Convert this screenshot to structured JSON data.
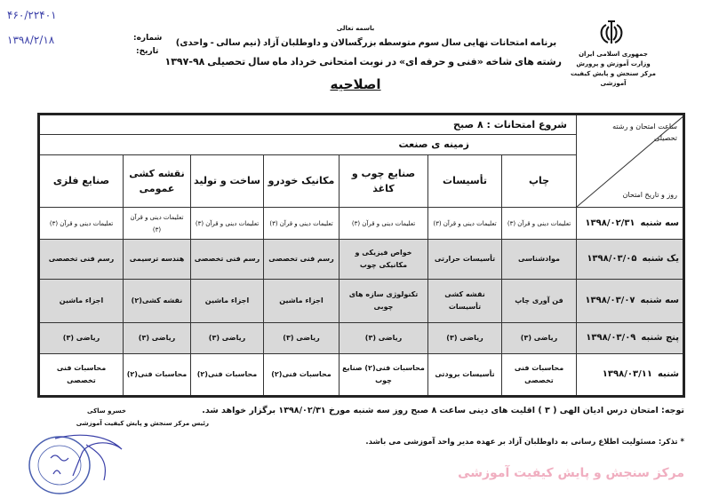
{
  "header": {
    "basmala": "باسمه تعالی",
    "title_line1": "برنامه امتحانات نهایی سال سوم متوسطه بزرگسالان و داوطلبان آزاد (نیم سالی - واحدی)",
    "title_line2": "رشته های شاخه «فنی و حرفه ای» در نوبت امتحانی خرداد ماه سال تحصیلی ۹۸-۱۳۹۷",
    "title_line3": "اصلاحیه",
    "org": [
      "جمهوری اسلامی ایران",
      "وزارت آموزش و پرورش",
      "مرکز سنجش و پایش کیفیت آموزشی"
    ],
    "number_label": "شماره:",
    "number_value": "۴۶۰/۲۲۴۰۱",
    "date_label": "تاریخ:",
    "date_value": "۱۳۹۸/۲/۱۸"
  },
  "table": {
    "start_time": "شروع امتحانات : ۸ صبح",
    "zone": "زمینه ی صنعت",
    "corner_top": "ساعت امتحان و رشته تحصیلی",
    "corner_bottom": "روز و تاریخ امتحان",
    "columns": [
      "چاپ",
      "تأسیسات",
      "صنایع چوب و کاغذ",
      "مکانیک خودرو",
      "ساخت و تولید",
      "نقشه کشی عمومی",
      "صنایع فلزی"
    ],
    "rows": [
      {
        "day": "سه شنبه",
        "date": "۱۳۹۸/۰۲/۳۱",
        "shaded": false,
        "cells": [
          "تعلیمات دینی و قرآن (۳)",
          "تعلیمات دینی و قرآن (۳)",
          "تعلیمات دینی و قرآن (۳)",
          "تعلیمات دینی و قرآن (۳)",
          "تعلیمات دینی و قرآن (۳)",
          "تعلیمات دینی و قرآن (۳)",
          "تعلیمات دینی و قرآن (۳)"
        ]
      },
      {
        "day": "یک شنبه",
        "date": "۱۳۹۸/۰۳/۰۵",
        "shaded": true,
        "cells": [
          "موادشناسی",
          "تأسیسات حرارتی",
          "خواص فیزیکی و مکانیکی چوب",
          "رسم فنی تخصصی",
          "رسم فنی تخصصی",
          "هندسه ترسیمی",
          "رسم فنی تخصصی"
        ]
      },
      {
        "day": "سه شنبه",
        "date": "۱۳۹۸/۰۳/۰۷",
        "shaded": true,
        "cells": [
          "فن آوری چاپ",
          "نقشه کشی تأسیسات",
          "تکنولوژی سازه های چوبی",
          "اجزاء ماشین",
          "اجزاء ماشین",
          "نقشه کشی(۲)",
          "اجزاء ماشین"
        ]
      },
      {
        "day": "پنج شنبه",
        "date": "۱۳۹۸/۰۳/۰۹",
        "shaded": true,
        "cells": [
          "ریاضی (۳)",
          "ریاضی (۳)",
          "ریاضی (۳)",
          "ریاضی (۳)",
          "ریاضی (۳)",
          "ریاضی (۳)",
          "ریاضی (۳)"
        ]
      },
      {
        "day": "شنبه",
        "date": "۱۳۹۸/۰۳/۱۱",
        "shaded": false,
        "cells": [
          "محاسبات فنی تخصصی",
          "تأسیسات برودتی",
          "محاسبات فنی(۲) صنایع چوب",
          "محاسبات فنی(۲)",
          "محاسبات فنی(۲)",
          "محاسبات فنی(۲)",
          "محاسبات فنی تخصصی"
        ]
      }
    ]
  },
  "notes": {
    "note1": "توجه: امتحان درس ادیان الهی ( ۳ ) اقلیت های دینی ساعت ۸ صبح روز سه شنبه مورخ ۱۳۹۸/۰۲/۳۱ برگزار خواهد شد.",
    "note2": "* تذکر: مسئولیت اطلاع رسانی به داوطلبان آزاد بر عهده مدیر واحد آموزشی می باشد."
  },
  "signature": {
    "name": "خسرو ساکی",
    "title": "رئیس مرکز سنجش و پایش کیفیت آموزشی"
  },
  "watermark": "مرکز سنجش و پایش کیفیت آموزشی",
  "colors": {
    "shaded_row": "#d9d9d9",
    "handwriting": "#3a3fa8",
    "stamp": "#4a5fb0",
    "watermark": "#e6789a"
  }
}
